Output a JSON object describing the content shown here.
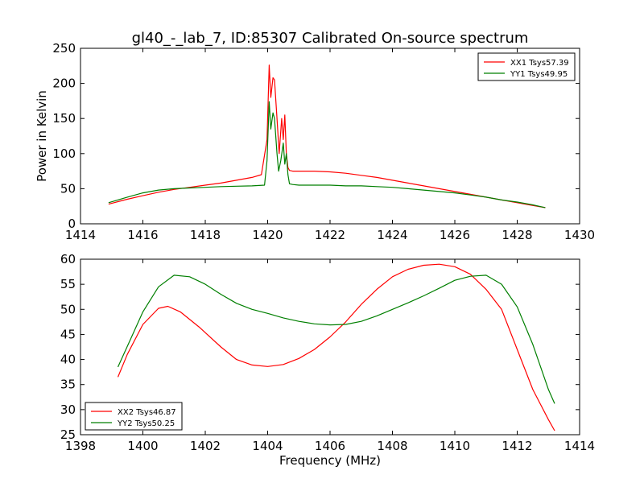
{
  "title": "gl40_-_lab_7, ID:85307 Calibrated On-source spectrum",
  "colors": {
    "xx": "#ff0000",
    "yy": "#007f00",
    "axis": "#000000"
  },
  "chart_data": [
    {
      "type": "line",
      "ylabel": "Power in Kelvin",
      "xlabel": "",
      "xlim": [
        1414,
        1430
      ],
      "ylim": [
        0,
        250
      ],
      "xticks": [
        "1414",
        "1416",
        "1418",
        "1420",
        "1422",
        "1424",
        "1426",
        "1428",
        "1430"
      ],
      "yticks": [
        "0",
        "50",
        "100",
        "150",
        "200",
        "250"
      ],
      "legend_position": "top-right",
      "series": [
        {
          "name": "XX1 Tsys57.39",
          "color": "#ff0000",
          "x": [
            1414.9,
            1415.5,
            1416,
            1416.5,
            1417,
            1417.5,
            1418,
            1418.5,
            1419,
            1419.5,
            1419.8,
            1419.98,
            1420.05,
            1420.1,
            1420.17,
            1420.22,
            1420.3,
            1420.37,
            1420.45,
            1420.5,
            1420.55,
            1420.6,
            1420.65,
            1420.7,
            1420.8,
            1421,
            1421.5,
            1422,
            1422.5,
            1423,
            1423.5,
            1424,
            1424.5,
            1425,
            1425.5,
            1426,
            1426.5,
            1427,
            1427.5,
            1428,
            1428.5,
            1428.9
          ],
          "y": [
            28,
            35,
            40,
            45,
            49,
            52,
            55,
            58,
            62,
            66,
            70,
            120,
            226,
            180,
            208,
            205,
            150,
            100,
            150,
            120,
            155,
            100,
            80,
            76,
            75,
            75,
            75,
            74,
            72,
            69,
            66,
            62,
            58,
            54,
            50,
            46,
            42,
            38,
            34,
            30,
            26,
            23
          ]
        },
        {
          "name": "YY1 Tsys49.95",
          "color": "#007f00",
          "x": [
            1414.9,
            1415.5,
            1416,
            1416.5,
            1417,
            1417.5,
            1418,
            1418.5,
            1419,
            1419.5,
            1419.9,
            1419.98,
            1420.05,
            1420.1,
            1420.17,
            1420.22,
            1420.3,
            1420.35,
            1420.42,
            1420.5,
            1420.55,
            1420.6,
            1420.65,
            1420.7,
            1420.8,
            1421,
            1421.5,
            1422,
            1422.5,
            1423,
            1423.5,
            1424,
            1424.5,
            1425,
            1425.5,
            1426,
            1426.5,
            1427,
            1427.5,
            1428,
            1428.5,
            1428.9
          ],
          "y": [
            30,
            38,
            44,
            48,
            50,
            51,
            52,
            53,
            53.5,
            54,
            55,
            90,
            174,
            135,
            158,
            150,
            100,
            75,
            90,
            115,
            85,
            100,
            70,
            57,
            56,
            55,
            55,
            55,
            54,
            54,
            53,
            52,
            50,
            48,
            46,
            44,
            41,
            38,
            34,
            31,
            27,
            23
          ]
        }
      ]
    },
    {
      "type": "line",
      "ylabel": "",
      "xlabel": "Frequency (MHz)",
      "xlim": [
        1398,
        1414
      ],
      "ylim": [
        25,
        60
      ],
      "xticks": [
        "1398",
        "1400",
        "1402",
        "1404",
        "1406",
        "1408",
        "1410",
        "1412",
        "1414"
      ],
      "yticks": [
        "25",
        "30",
        "35",
        "40",
        "45",
        "50",
        "55",
        "60"
      ],
      "legend_position": "bottom-left",
      "series": [
        {
          "name": "XX2 Tsys46.87",
          "color": "#ff0000",
          "x": [
            1399.2,
            1399.5,
            1400,
            1400.5,
            1400.8,
            1401.2,
            1401.8,
            1402.5,
            1403,
            1403.5,
            1404,
            1404.5,
            1405,
            1405.5,
            1406,
            1406.5,
            1407,
            1407.5,
            1408,
            1408.5,
            1409,
            1409.5,
            1410,
            1410.5,
            1411,
            1411.5,
            1412,
            1412.5,
            1413,
            1413.2
          ],
          "y": [
            36.5,
            41,
            47,
            50.2,
            50.6,
            49.5,
            46.5,
            42.5,
            40,
            38.9,
            38.6,
            39,
            40.2,
            42,
            44.5,
            47.5,
            51,
            54,
            56.5,
            58,
            58.8,
            59,
            58.5,
            57,
            54,
            50,
            42,
            34,
            28,
            25.8
          ]
        },
        {
          "name": "YY2 Tsys50.25",
          "color": "#007f00",
          "x": [
            1399.2,
            1399.6,
            1400,
            1400.5,
            1401,
            1401.5,
            1402,
            1402.5,
            1403,
            1403.5,
            1404,
            1404.5,
            1405,
            1405.5,
            1406,
            1406.5,
            1407,
            1407.5,
            1408,
            1408.5,
            1409,
            1409.5,
            1410,
            1410.5,
            1411,
            1411.5,
            1412,
            1412.5,
            1413,
            1413.2
          ],
          "y": [
            38.5,
            44,
            49.5,
            54.5,
            56.8,
            56.5,
            55,
            53,
            51.2,
            50,
            49.2,
            48.3,
            47.6,
            47.1,
            46.9,
            47,
            47.6,
            48.7,
            50,
            51.3,
            52.7,
            54.2,
            55.8,
            56.6,
            56.8,
            55,
            50.5,
            43,
            34,
            31.2
          ]
        }
      ]
    }
  ]
}
